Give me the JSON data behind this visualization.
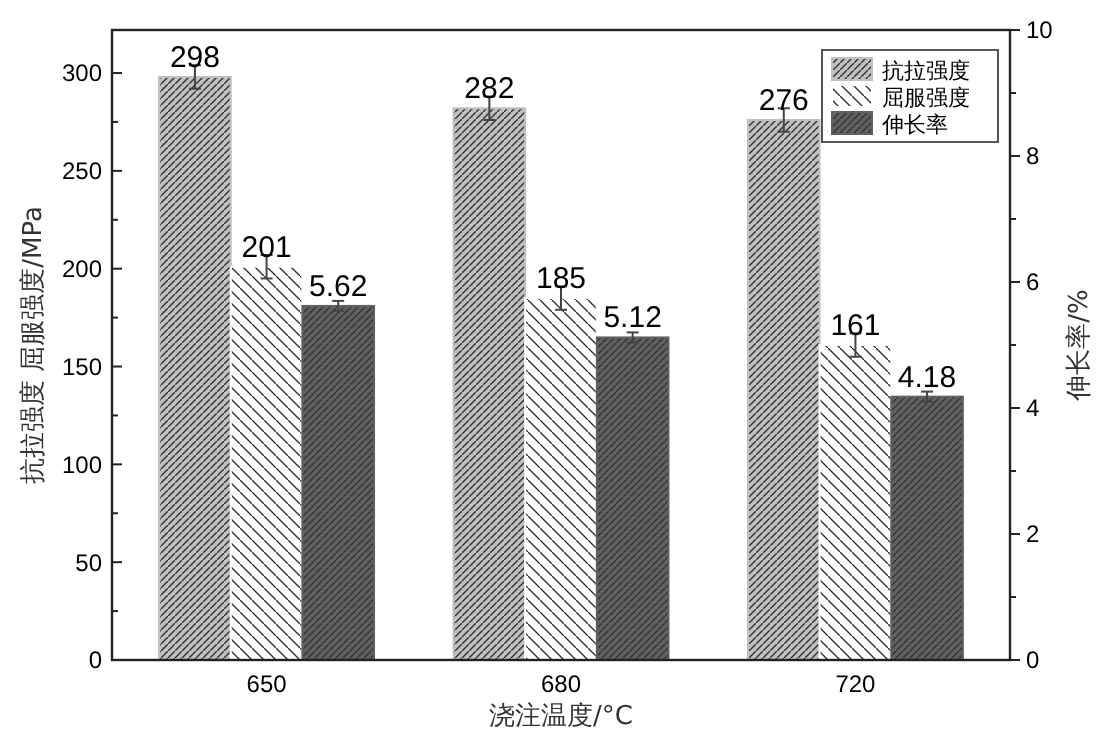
{
  "chart_data": {
    "type": "bar",
    "categories": [
      "650",
      "680",
      "720"
    ],
    "xlabel": "浇注温度/°C",
    "ylabel": "抗拉强度 屈服强度/MPa",
    "y2label": "伸长率/%",
    "series": [
      {
        "name": "抗拉强度",
        "color": "#c0c0c0",
        "values": [
          298,
          282,
          276
        ],
        "errors": [
          6,
          6,
          6
        ]
      },
      {
        "name": "屈服强度",
        "color": "#ffffff",
        "values": [
          201,
          185,
          161
        ],
        "errors": [
          6,
          6,
          6
        ]
      },
      {
        "name": "伸长率",
        "color": "#606060",
        "values": [
          5.62,
          5.12,
          4.18
        ],
        "errors": [
          0.08,
          0.08,
          0.08
        ],
        "axis": "y2"
      }
    ],
    "ylim": [
      0,
      322
    ],
    "yticks": [
      0,
      {
        "value": 25,
        "label": null
      },
      50,
      {
        "value": 75,
        "label": null
      },
      100,
      {
        "value": 125,
        "label": null
      },
      150,
      {
        "value": 175,
        "label": null
      },
      200,
      {
        "value": 225,
        "label": null
      },
      250,
      {
        "value": 275,
        "label": null
      },
      300
    ],
    "y2lim": [
      0,
      10
    ],
    "y2ticks": [
      0,
      {
        "value": 1,
        "label": null
      },
      2,
      {
        "value": 3,
        "label": null
      },
      4,
      {
        "value": 5,
        "label": null
      },
      6,
      {
        "value": 7,
        "label": null
      },
      8,
      {
        "value": 9,
        "label": null
      },
      10
    ],
    "data_labels": true,
    "legend": "top right",
    "grid": false
  }
}
